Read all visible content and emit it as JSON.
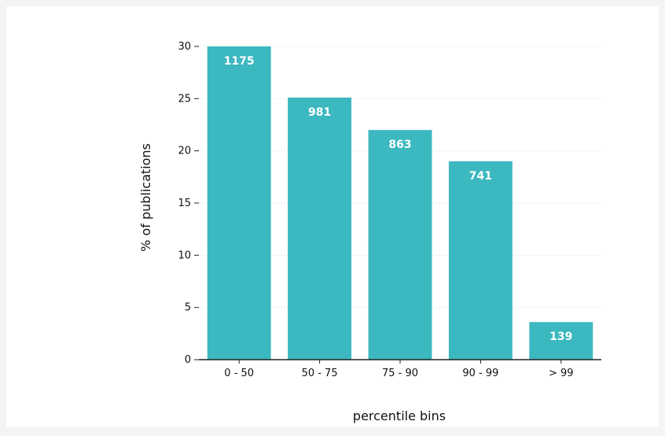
{
  "chart_data": {
    "type": "bar",
    "categories": [
      "0 - 50",
      "50 - 75",
      "75 - 90",
      "90 - 99",
      "> 99"
    ],
    "values": [
      30,
      25.1,
      22,
      19,
      3.6
    ],
    "data_labels": [
      "1175",
      "981",
      "863",
      "741",
      "139"
    ],
    "xlabel": "percentile bins",
    "ylabel": "% of publications",
    "ylim": [
      0,
      30
    ],
    "yticks": [
      0,
      5,
      10,
      15,
      20,
      25,
      30
    ],
    "grid": true,
    "bar_color": "#3cb8c0",
    "grid_color": "#eef6f8",
    "axis_color": "#222222"
  }
}
